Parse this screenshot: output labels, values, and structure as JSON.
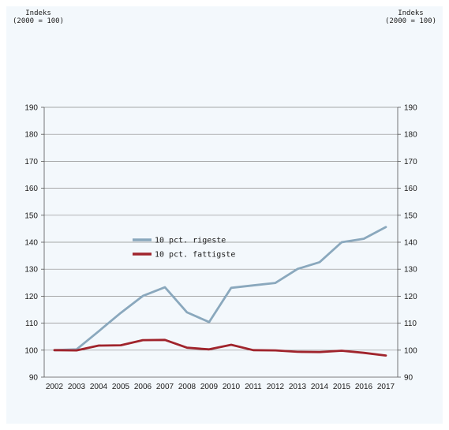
{
  "units": {
    "left": [
      "Indeks",
      "(2000 = 100)"
    ],
    "right": [
      "Indeks",
      "(2000 = 100)"
    ]
  },
  "chart_data": {
    "type": "line",
    "x": [
      "2002",
      "2003",
      "2004",
      "2005",
      "2006",
      "2007",
      "2008",
      "2009",
      "2010",
      "2011",
      "2012",
      "2013",
      "2014",
      "2015",
      "2016",
      "2017"
    ],
    "ylim": [
      90,
      190
    ],
    "yticks": [
      90,
      100,
      110,
      120,
      130,
      140,
      150,
      160,
      170,
      180,
      190
    ],
    "grid": true,
    "legend_position": "center-left",
    "series": [
      {
        "name": "10 pct. rigeste",
        "color": "#8aa8bd",
        "values": [
          100,
          100.3,
          107,
          113.8,
          120.1,
          123.3,
          114,
          110.4,
          123.1,
          124,
          124.9,
          130.1,
          132.6,
          140,
          141.3,
          145.6
        ]
      },
      {
        "name": "10 pct. fattigste",
        "color": "#a0242c",
        "values": [
          100,
          99.9,
          101.7,
          101.8,
          103.7,
          103.8,
          100.9,
          100.3,
          102,
          100,
          99.9,
          99.4,
          99.3,
          99.8,
          99,
          98
        ]
      }
    ]
  }
}
